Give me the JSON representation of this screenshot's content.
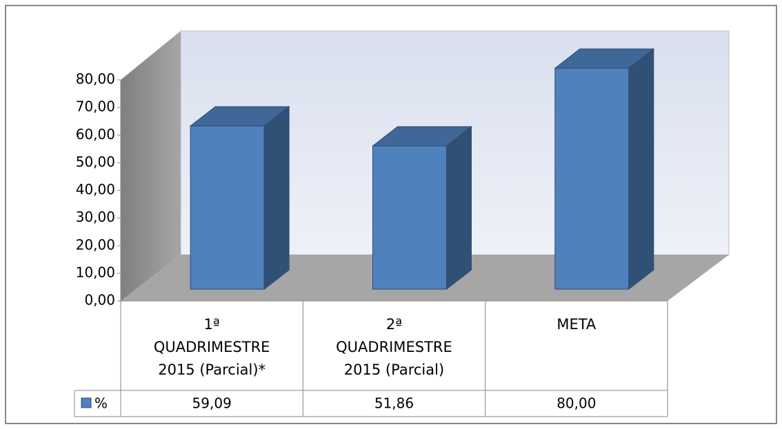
{
  "chart_data": {
    "type": "bar3d",
    "categories": [
      "1ª QUADRIMESTRE 2015 (Parcial)*",
      "2ª QUADRIMESTRE 2015 (Parcial)",
      "META"
    ],
    "series": [
      {
        "name": "%",
        "color": "#4f81bd",
        "values": [
          59.09,
          51.86,
          80
        ],
        "value_labels": [
          "59,09",
          "51,86",
          "80,00"
        ]
      }
    ],
    "ylim": [
      0,
      80
    ],
    "yticks": [
      {
        "value": 0,
        "label": "0,00"
      },
      {
        "value": 10,
        "label": "10,00"
      },
      {
        "value": 20,
        "label": "20,00"
      },
      {
        "value": 30,
        "label": "30,00"
      },
      {
        "value": 40,
        "label": "40,00"
      },
      {
        "value": 50,
        "label": "50,00"
      },
      {
        "value": 60,
        "label": "60,00"
      },
      {
        "value": 70,
        "label": "70,00"
      },
      {
        "value": 80,
        "label": "80,00"
      }
    ],
    "data_table": true
  }
}
